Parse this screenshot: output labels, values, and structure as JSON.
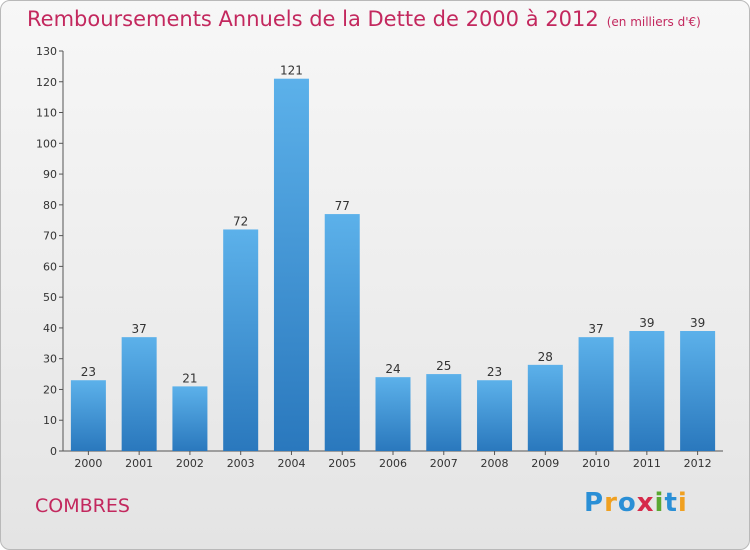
{
  "chart_data": {
    "type": "bar",
    "title": "Remboursements Annuels de la Dette de 2000 à 2012",
    "subtitle": "(en milliers d'€)",
    "categories": [
      "2000",
      "2001",
      "2002",
      "2003",
      "2004",
      "2005",
      "2006",
      "2007",
      "2008",
      "2009",
      "2010",
      "2011",
      "2012"
    ],
    "values": [
      23,
      37,
      21,
      72,
      121,
      77,
      24,
      25,
      23,
      28,
      37,
      39,
      39
    ],
    "ylim": [
      0,
      130
    ],
    "yticks": [
      0,
      10,
      20,
      30,
      40,
      50,
      60,
      70,
      80,
      90,
      100,
      110,
      120,
      130
    ],
    "grid": false,
    "data_labels": true,
    "bar_color": "#3f93d3",
    "title_color": "#c3285e"
  },
  "commune": "COMBRES",
  "brand": {
    "name": "Proxiti",
    "letters": [
      "P",
      "r",
      "o",
      "x",
      "i",
      "t",
      "i"
    ],
    "colors": [
      "#2a8fd6",
      "#f0a020",
      "#2a8fd6",
      "#d62a4a",
      "#5aa832",
      "#2a8fd6",
      "#f0a020"
    ]
  }
}
